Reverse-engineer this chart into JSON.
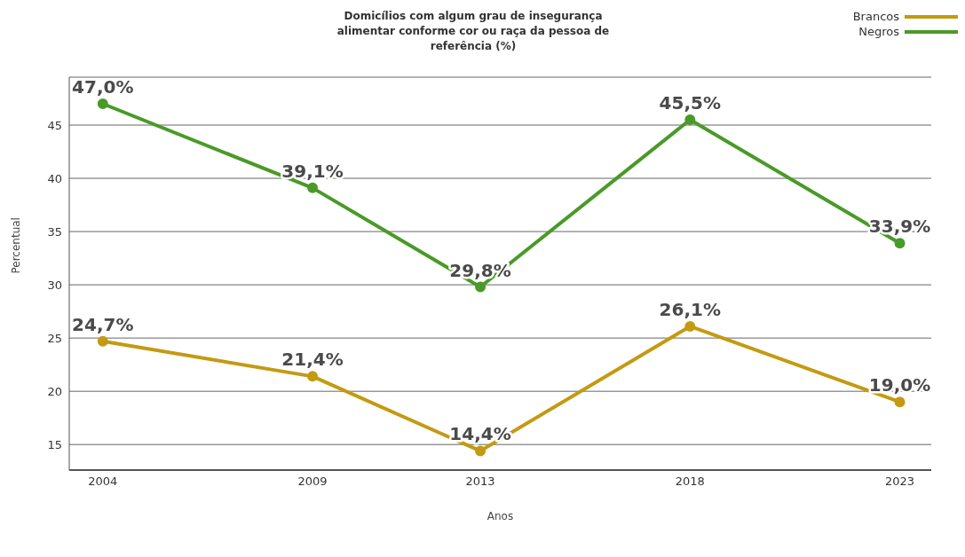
{
  "chart_data": {
    "type": "line",
    "title": "Domicílios com algum grau de insegurança alimentar conforme cor ou raça da pessoa de referência (%)",
    "xlabel": "Anos",
    "ylabel": "Percentual",
    "x": [
      2004,
      2009,
      2013,
      2018,
      2023
    ],
    "xlim": [
      2003.2,
      2023.75
    ],
    "xticks": [
      2004,
      2009,
      2013,
      2018,
      2023
    ],
    "ylim": [
      12.6,
      49.5
    ],
    "yticks": [
      15,
      20,
      25,
      30,
      35,
      40,
      45
    ],
    "grid": "y",
    "legend": "top right",
    "marker": "circle",
    "line_style": "solid",
    "series": [
      {
        "name": "Brancos",
        "color": "#c49a12",
        "values": [
          24.7,
          21.4,
          14.4,
          26.1,
          19.0
        ],
        "value_labels": [
          "24,7%",
          "21,4%",
          "14,4%",
          "26,1%",
          "19,0%"
        ]
      },
      {
        "name": "Negros",
        "color": "#4a9a28",
        "values": [
          47.0,
          39.1,
          29.8,
          45.5,
          33.9
        ],
        "value_labels": [
          "47,0%",
          "39,1%",
          "29,8%",
          "45,5%",
          "33,9%"
        ]
      }
    ]
  }
}
